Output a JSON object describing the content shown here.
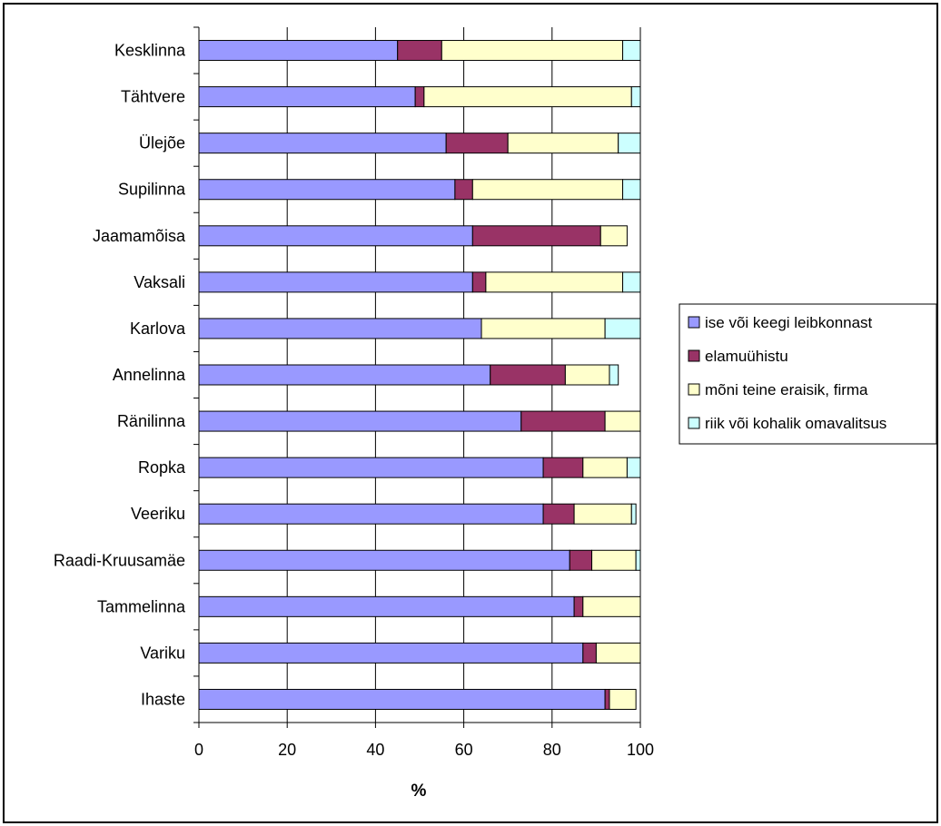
{
  "chart_data": {
    "type": "bar",
    "orientation": "horizontal",
    "stacked": true,
    "title": "",
    "xlabel": "%",
    "ylabel": "",
    "xlim": [
      0,
      100
    ],
    "xticks": [
      "0",
      "20",
      "40",
      "60",
      "80",
      "100"
    ],
    "grid": true,
    "legend_position": "right",
    "categories": [
      "Kesklinna",
      "Tähtvere",
      "Ülejõe",
      "Supilinna",
      "Jaamamõisa",
      "Vaksali",
      "Karlova",
      "Annelinna",
      "Ränilinna",
      "Ropka",
      "Veeriku",
      "Raadi-Kruusamäe",
      "Tammelinna",
      "Variku",
      "Ihaste"
    ],
    "series": [
      {
        "name": "ise või keegi leibkonnast",
        "color": "#9999ff",
        "values": [
          45,
          49,
          56,
          58,
          62,
          62,
          64,
          66,
          73,
          78,
          78,
          84,
          85,
          87,
          92
        ]
      },
      {
        "name": "elamuühistu",
        "color": "#993366",
        "values": [
          10,
          2,
          14,
          4,
          29,
          3,
          0,
          17,
          19,
          9,
          7,
          5,
          2,
          3,
          1
        ]
      },
      {
        "name": "mõni teine eraisik, firma",
        "color": "#ffffcc",
        "values": [
          41,
          47,
          25,
          34,
          6,
          31,
          28,
          10,
          8,
          10,
          13,
          10,
          13,
          10,
          6
        ]
      },
      {
        "name": "riik või kohalik omavalitsus",
        "color": "#ccffff",
        "values": [
          4,
          2,
          5,
          4,
          0,
          4,
          8,
          2,
          0,
          3,
          1,
          1,
          0,
          0,
          0
        ]
      }
    ]
  }
}
